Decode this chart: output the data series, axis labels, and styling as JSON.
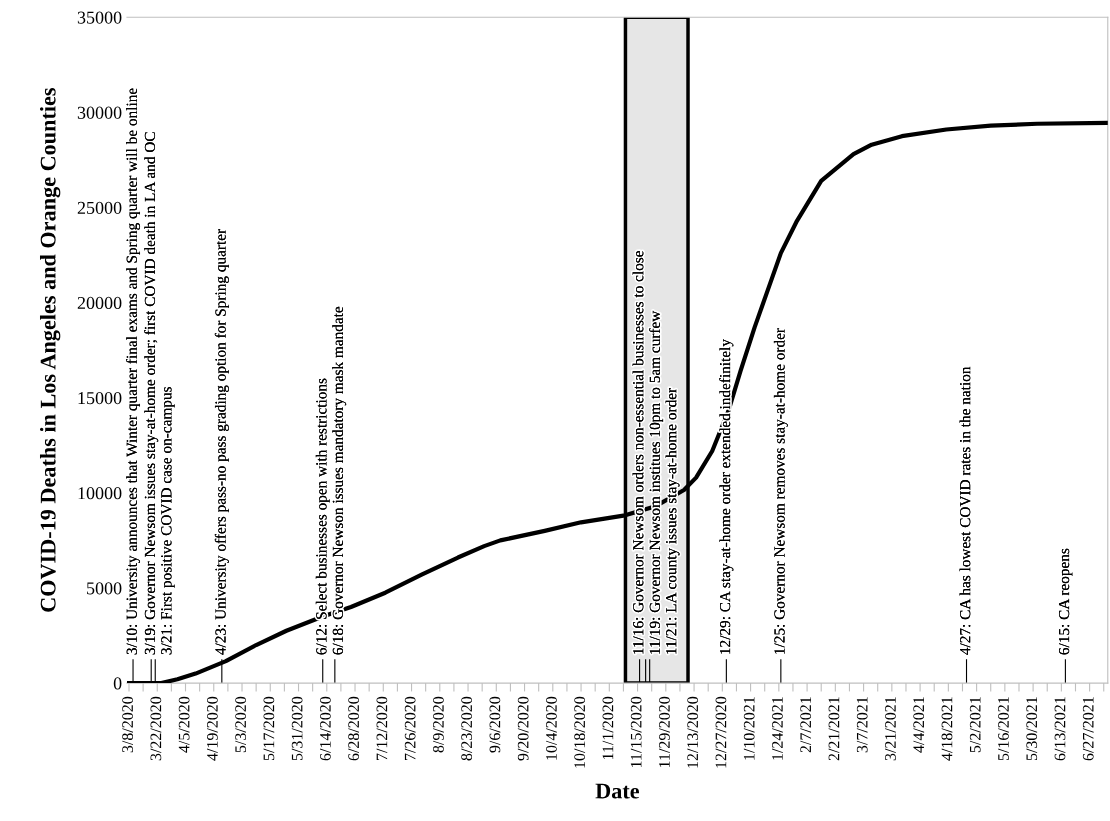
{
  "chart_data": {
    "type": "line",
    "xlabel": "Date",
    "ylabel": "COVID-19 Deaths in Los Angeles and Orange Counties",
    "series": [
      {
        "color": "#000000",
        "x": [
          "2020-03-08",
          "2020-03-24",
          "2020-04-01",
          "2020-04-10",
          "2020-04-25",
          "2020-05-10",
          "2020-05-25",
          "2020-06-12",
          "2020-06-26",
          "2020-07-13",
          "2020-07-31",
          "2020-08-18",
          "2020-08-31",
          "2020-09-08",
          "2020-09-30",
          "2020-10-18",
          "2020-11-08",
          "2020-11-24",
          "2020-12-08",
          "2020-12-14",
          "2020-12-22",
          "2020-12-30",
          "2021-01-05",
          "2021-01-12",
          "2021-01-19",
          "2021-01-25",
          "2021-02-02",
          "2021-02-14",
          "2021-03-02",
          "2021-03-11",
          "2021-03-26",
          "2021-04-17",
          "2021-05-09",
          "2021-06-01",
          "2021-07-06"
        ],
        "values": [
          0,
          0,
          200,
          500,
          1150,
          2000,
          2750,
          3500,
          4000,
          4750,
          5700,
          6600,
          7200,
          7500,
          8000,
          8450,
          8800,
          9300,
          10150,
          10800,
          12200,
          14300,
          16400,
          18700,
          20800,
          22600,
          24300,
          26400,
          27800,
          28300,
          28750,
          29100,
          29300,
          29400,
          29450
        ]
      }
    ],
    "xlim": [
      "2020-03-07",
      "2021-07-06"
    ],
    "xticks": [
      {
        "value": "2020-03-08",
        "label": "3/8/2020"
      },
      {
        "value": "2020-03-15",
        "label": null
      },
      {
        "value": "2020-03-22",
        "label": "3/22/2020"
      },
      {
        "value": "2020-03-29",
        "label": null
      },
      {
        "value": "2020-04-05",
        "label": "4/5/2020"
      },
      {
        "value": "2020-04-12",
        "label": null
      },
      {
        "value": "2020-04-19",
        "label": "4/19/2020"
      },
      {
        "value": "2020-04-26",
        "label": null
      },
      {
        "value": "2020-05-03",
        "label": "5/3/2020"
      },
      {
        "value": "2020-05-10",
        "label": null
      },
      {
        "value": "2020-05-17",
        "label": "5/17/2020"
      },
      {
        "value": "2020-05-24",
        "label": null
      },
      {
        "value": "2020-05-31",
        "label": "5/31/2020"
      },
      {
        "value": "2020-06-07",
        "label": null
      },
      {
        "value": "2020-06-14",
        "label": "6/14/2020"
      },
      {
        "value": "2020-06-21",
        "label": null
      },
      {
        "value": "2020-06-28",
        "label": "6/28/2020"
      },
      {
        "value": "2020-07-05",
        "label": null
      },
      {
        "value": "2020-07-12",
        "label": "7/12/2020"
      },
      {
        "value": "2020-07-19",
        "label": null
      },
      {
        "value": "2020-07-26",
        "label": "7/26/2020"
      },
      {
        "value": "2020-08-02",
        "label": null
      },
      {
        "value": "2020-08-09",
        "label": "8/9/2020"
      },
      {
        "value": "2020-08-16",
        "label": null
      },
      {
        "value": "2020-08-23",
        "label": "8/23/2020"
      },
      {
        "value": "2020-08-30",
        "label": null
      },
      {
        "value": "2020-09-06",
        "label": "9/6/2020"
      },
      {
        "value": "2020-09-13",
        "label": null
      },
      {
        "value": "2020-09-20",
        "label": "9/20/2020"
      },
      {
        "value": "2020-09-27",
        "label": null
      },
      {
        "value": "2020-10-04",
        "label": "10/4/2020"
      },
      {
        "value": "2020-10-11",
        "label": null
      },
      {
        "value": "2020-10-18",
        "label": "10/18/2020"
      },
      {
        "value": "2020-10-25",
        "label": null
      },
      {
        "value": "2020-11-01",
        "label": "11/1/2020"
      },
      {
        "value": "2020-11-08",
        "label": null
      },
      {
        "value": "2020-11-15",
        "label": "11/15/2020"
      },
      {
        "value": "2020-11-22",
        "label": null
      },
      {
        "value": "2020-11-29",
        "label": "11/29/2020"
      },
      {
        "value": "2020-12-06",
        "label": null
      },
      {
        "value": "2020-12-13",
        "label": "12/13/2020"
      },
      {
        "value": "2020-12-20",
        "label": null
      },
      {
        "value": "2020-12-27",
        "label": "12/27/2020"
      },
      {
        "value": "2021-01-03",
        "label": null
      },
      {
        "value": "2021-01-10",
        "label": "1/10/2021"
      },
      {
        "value": "2021-01-17",
        "label": null
      },
      {
        "value": "2021-01-24",
        "label": "1/24/2021"
      },
      {
        "value": "2021-01-31",
        "label": null
      },
      {
        "value": "2021-02-07",
        "label": "2/7/2021"
      },
      {
        "value": "2021-02-14",
        "label": null
      },
      {
        "value": "2021-02-21",
        "label": "2/21/2021"
      },
      {
        "value": "2021-02-28",
        "label": null
      },
      {
        "value": "2021-03-07",
        "label": "3/7/2021"
      },
      {
        "value": "2021-03-14",
        "label": null
      },
      {
        "value": "2021-03-21",
        "label": "3/21/2021"
      },
      {
        "value": "2021-03-28",
        "label": null
      },
      {
        "value": "2021-04-04",
        "label": "4/4/2021"
      },
      {
        "value": "2021-04-11",
        "label": null
      },
      {
        "value": "2021-04-18",
        "label": "4/18/2021"
      },
      {
        "value": "2021-04-25",
        "label": null
      },
      {
        "value": "2021-05-02",
        "label": "5/2/2021"
      },
      {
        "value": "2021-05-09",
        "label": null
      },
      {
        "value": "2021-05-16",
        "label": "5/16/2021"
      },
      {
        "value": "2021-05-23",
        "label": null
      },
      {
        "value": "2021-05-30",
        "label": "5/30/2021"
      },
      {
        "value": "2021-06-06",
        "label": null
      },
      {
        "value": "2021-06-13",
        "label": "6/13/2021"
      },
      {
        "value": "2021-06-20",
        "label": null
      },
      {
        "value": "2021-06-27",
        "label": "6/27/2021"
      },
      {
        "value": "2021-07-04",
        "label": null
      }
    ],
    "ylim": [
      0,
      35000
    ],
    "yticks": [
      0,
      5000,
      10000,
      15000,
      20000,
      25000,
      30000,
      35000
    ],
    "grid": false,
    "marker": "none",
    "line_style": "solid",
    "bands": [
      {
        "axis": "x",
        "from": "2020-11-09",
        "to": "2020-12-10",
        "color": "#e6e6e6"
      }
    ],
    "ref_lines": [
      {
        "axis": "x",
        "value": "2020-03-10",
        "label": "3/10: University announces that Winter quarter final exams and Spring quarter will be online"
      },
      {
        "axis": "x",
        "value": "2020-03-19",
        "label": "3/19: Governor Newsom issues stay-at-home order; first COVID death in LA and OC"
      },
      {
        "axis": "x",
        "value": "2020-03-21",
        "label": "3/21: First positive COVID case on-campus"
      },
      {
        "axis": "x",
        "value": "2020-04-23",
        "label": "4/23: University offers pass-no pass grading option for Spring quarter"
      },
      {
        "axis": "x",
        "value": "2020-06-12",
        "label": "6/12: Select businesses open with restrictions"
      },
      {
        "axis": "x",
        "value": "2020-06-18",
        "label": "6/18: Governor Newson issues mandatory mask mandate"
      },
      {
        "axis": "x",
        "value": "2020-11-16",
        "label": "11/16: Governor Newsom orders non-essential businesses to close"
      },
      {
        "axis": "x",
        "value": "2020-11-19",
        "label": "11/19: Governor Newsom institues 10pm to 5am curfew"
      },
      {
        "axis": "x",
        "value": "2020-11-21",
        "label": "11/21: LA county issues stay-at-home order"
      },
      {
        "axis": "x",
        "value": "2020-12-29",
        "label": "12/29: CA stay-at-home order extended indefinitely"
      },
      {
        "axis": "x",
        "value": "2021-01-25",
        "label": "1/25: Governor Newsom removes stay-at-home order"
      },
      {
        "axis": "x",
        "value": "2021-04-27",
        "label": "4/27: CA has lowest COVID rates in the nation"
      },
      {
        "axis": "x",
        "value": "2021-06-15",
        "label": "6/15: CA reopens"
      }
    ]
  }
}
